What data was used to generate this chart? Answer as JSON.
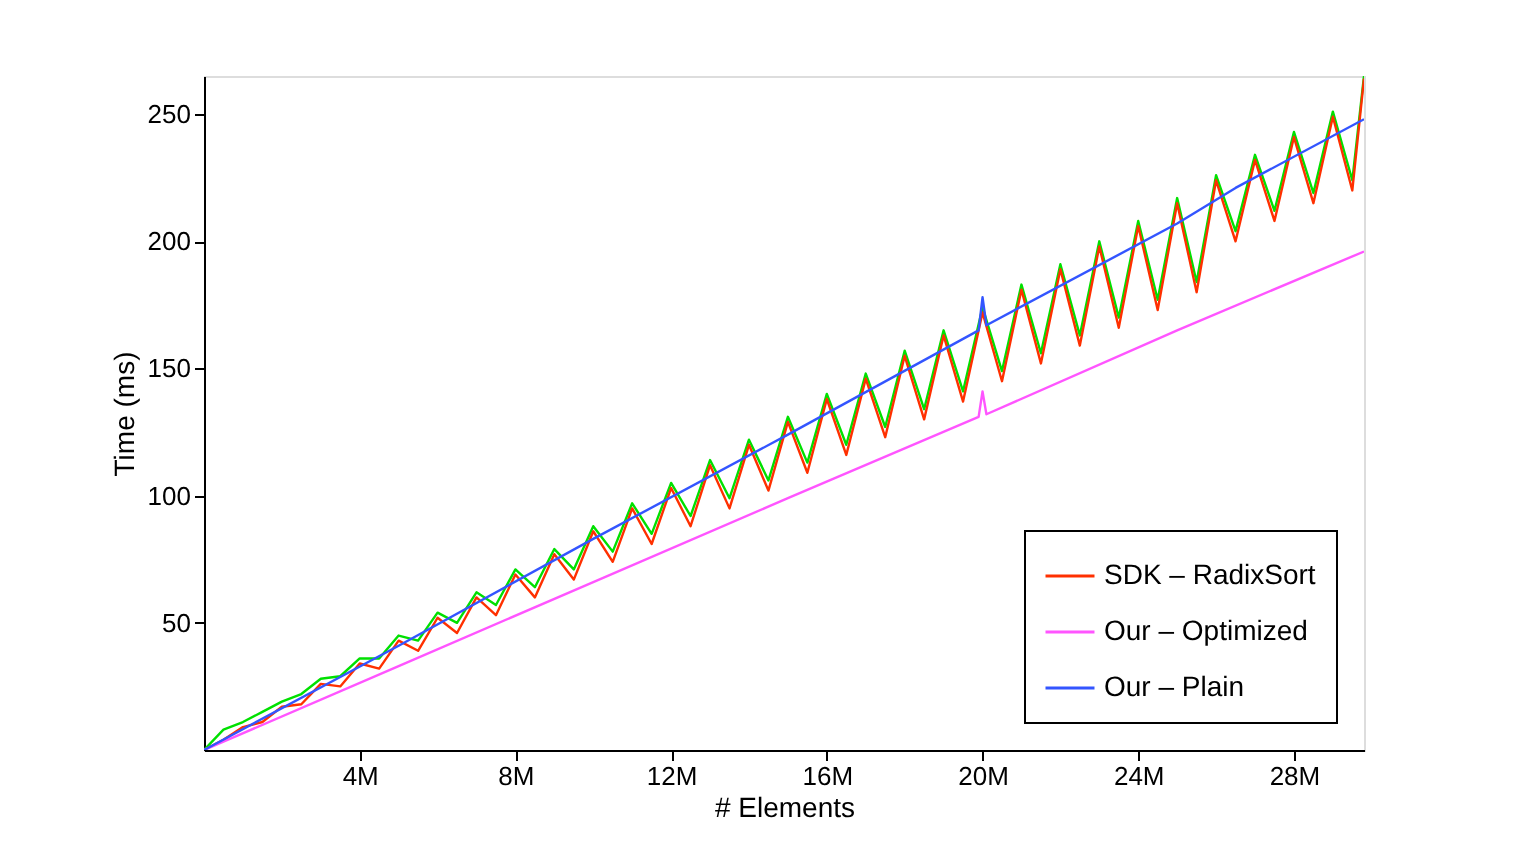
{
  "chart_data": {
    "type": "line",
    "xlabel": "# Elements",
    "ylabel": "Time (ms)",
    "xlim": [
      0,
      29.8
    ],
    "ylim": [
      0,
      265
    ],
    "xticks": [
      {
        "value": 4,
        "label": "4M"
      },
      {
        "value": 8,
        "label": "8M"
      },
      {
        "value": 12,
        "label": "12M"
      },
      {
        "value": 16,
        "label": "16M"
      },
      {
        "value": 20,
        "label": "20M"
      },
      {
        "value": 24,
        "label": "24M"
      },
      {
        "value": 28,
        "label": "28M"
      }
    ],
    "yticks": [
      50,
      100,
      150,
      200,
      250
    ],
    "grid": false,
    "legend": "bottom right",
    "marker": "none",
    "line_style": "solid",
    "series": [
      {
        "color": "#00e000",
        "x": [
          0,
          0.5,
          1,
          1.5,
          2,
          2.5,
          3,
          3.5,
          4,
          4.5,
          5,
          5.5,
          6,
          6.5,
          7,
          7.5,
          8,
          8.5,
          9,
          9.5,
          10,
          10.5,
          11,
          11.5,
          12,
          12.5,
          13,
          13.5,
          14,
          14.5,
          15,
          15.5,
          16,
          16.5,
          17,
          17.5,
          18,
          18.5,
          19,
          19.5,
          20,
          20.5,
          21,
          21.5,
          22,
          22.5,
          23,
          23.5,
          24,
          24.5,
          25,
          25.5,
          26,
          26.5,
          27,
          27.5,
          28,
          28.5,
          29,
          29.5,
          29.8
        ],
        "values": [
          0,
          8,
          11,
          15,
          19,
          22,
          28,
          29,
          36,
          36,
          45,
          43,
          54,
          50,
          62,
          57,
          71,
          64,
          79,
          71,
          88,
          78,
          97,
          85,
          105,
          92,
          114,
          99,
          122,
          106,
          131,
          113,
          140,
          120,
          148,
          127,
          157,
          134,
          165,
          141,
          174,
          149,
          183,
          156,
          191,
          163,
          200,
          170,
          208,
          177,
          217,
          184,
          226,
          204,
          234,
          212,
          243,
          219,
          251,
          224,
          265
        ]
      },
      {
        "name": "SDK – RadixSort",
        "color": "#ff3000",
        "x": [
          0,
          0.5,
          1,
          1.5,
          2,
          2.5,
          3,
          3.5,
          4,
          4.5,
          5,
          5.5,
          6,
          6.5,
          7,
          7.5,
          8,
          8.5,
          9,
          9.5,
          10,
          10.5,
          11,
          11.5,
          12,
          12.5,
          13,
          13.5,
          14,
          14.5,
          15,
          15.5,
          16,
          16.5,
          17,
          17.5,
          18,
          18.5,
          19,
          19.5,
          20,
          20.5,
          21,
          21.5,
          22,
          22.5,
          23,
          23.5,
          24,
          24.5,
          25,
          25.5,
          26,
          26.5,
          27,
          27.5,
          28,
          28.5,
          29,
          29.5,
          29.8
        ],
        "values": [
          0,
          4,
          9,
          11,
          17,
          18,
          26,
          25,
          34,
          32,
          43,
          39,
          52,
          46,
          60,
          53,
          69,
          60,
          77,
          67,
          86,
          74,
          95,
          81,
          103,
          88,
          112,
          95,
          120,
          102,
          129,
          109,
          138,
          116,
          146,
          123,
          155,
          130,
          163,
          137,
          172,
          145,
          181,
          152,
          189,
          159,
          198,
          166,
          206,
          173,
          215,
          180,
          224,
          200,
          232,
          208,
          241,
          215,
          249,
          220,
          264
        ]
      },
      {
        "name": "Our – Optimized",
        "color": "#ff55ff",
        "x": [
          0,
          5,
          10,
          15,
          19.9,
          20,
          20.1,
          25,
          29.8
        ],
        "values": [
          0,
          33,
          66,
          99,
          131,
          141,
          132,
          165,
          196
        ]
      },
      {
        "name": "Our – Plain",
        "color": "#3355ff",
        "x": [
          0,
          5,
          10,
          15,
          19.9,
          20,
          20.1,
          25,
          26.5,
          29.8
        ],
        "values": [
          0,
          41,
          83,
          124,
          165,
          178,
          167,
          207,
          221,
          248
        ]
      }
    ]
  }
}
